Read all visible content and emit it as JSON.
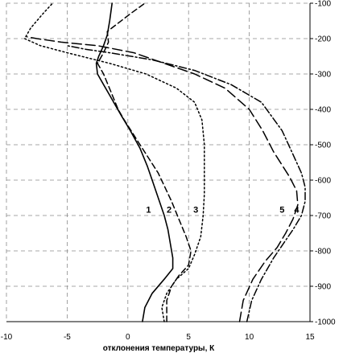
{
  "chart_data": {
    "type": "line",
    "title": "",
    "xlabel": "отклонения температуры, К",
    "ylabel": "",
    "xlim": [
      -10,
      15
    ],
    "ylim": [
      -1000,
      -100
    ],
    "grid": true,
    "legend": "none",
    "x_ticks": [
      -10,
      -5,
      0,
      5,
      10,
      15
    ],
    "x_tick_labels": [
      "-10",
      "-5",
      "0",
      "5",
      "10",
      "15"
    ],
    "y_ticks": [
      -100,
      -200,
      -300,
      -400,
      -500,
      -600,
      -700,
      -800,
      -900,
      -1000
    ],
    "y_tick_labels": [
      "-100",
      "-200",
      "-300",
      "-400",
      "-500",
      "-600",
      "-700",
      "-800",
      "-900",
      "-1000"
    ],
    "series": [
      {
        "name": "1",
        "style": "solid",
        "x": [
          1.2,
          1.4,
          2.0,
          3.0,
          3.7,
          3.7,
          3.5,
          3.3,
          3.0,
          2.5,
          2.0,
          1.6,
          1.0,
          0.2,
          -0.5,
          -1.0,
          -1.5,
          -2.0,
          -2.5,
          -2.6,
          -2.4,
          -2.0,
          -1.7,
          -1.5,
          -1.3
        ],
        "y": [
          -1000,
          -960,
          -920,
          -880,
          -850,
          -820,
          -780,
          -740,
          -700,
          -650,
          -600,
          -560,
          -510,
          -460,
          -420,
          -390,
          -360,
          -330,
          -300,
          -270,
          -250,
          -220,
          -190,
          -150,
          -100
        ]
      },
      {
        "name": "2",
        "style": "dashed",
        "x": [
          3.2,
          3.2,
          3.6,
          4.2,
          5.0,
          5.2,
          4.8,
          4.2,
          3.6,
          2.5,
          1.0,
          -0.3,
          -0.8,
          -1.4,
          -2.0,
          -2.5,
          -2.0,
          -1.6,
          -1.7,
          0.2,
          1.4
        ],
        "y": [
          -1000,
          -940,
          -900,
          -870,
          -840,
          -800,
          -760,
          -710,
          -660,
          -580,
          -500,
          -430,
          -400,
          -350,
          -300,
          -270,
          -240,
          -210,
          -180,
          -130,
          -100
        ]
      },
      {
        "name": "3",
        "style": "dotted",
        "x": [
          3.0,
          2.8,
          3.2,
          4.0,
          5.0,
          5.5,
          6.0,
          6.2,
          6.3,
          6.3,
          6.3,
          6.1,
          5.5,
          4.0,
          1.5,
          -1.5,
          -5.0,
          -7.2,
          -8.5,
          -8.0,
          -7.0,
          -6.2
        ],
        "y": [
          -1000,
          -960,
          -920,
          -880,
          -850,
          -810,
          -760,
          -700,
          -640,
          -580,
          -500,
          -430,
          -380,
          -340,
          -300,
          -270,
          -240,
          -220,
          -200,
          -170,
          -130,
          -100
        ]
      },
      {
        "name": "4",
        "style": "dash-dot",
        "x": [
          9.8,
          10.2,
          11.0,
          12.0,
          12.8,
          13.6,
          14.3,
          14.6,
          14.6,
          14.3,
          13.5,
          12.7,
          11.0,
          8.5,
          5.5,
          2.0,
          -1.5,
          -3.5,
          -5.0
        ],
        "y": [
          -1000,
          -940,
          -880,
          -820,
          -780,
          -740,
          -700,
          -660,
          -620,
          -580,
          -520,
          -460,
          -380,
          -330,
          -290,
          -260,
          -240,
          -230,
          -220
        ]
      },
      {
        "name": "5",
        "style": "long-dash",
        "x": [
          9.2,
          9.5,
          10.3,
          11.3,
          12.3,
          13.0,
          13.6,
          14.0,
          13.9,
          13.3,
          12.0,
          11.1,
          10.0,
          8.0,
          5.5,
          3.0,
          0.5,
          -2.5,
          -5.5,
          -7.5,
          -8.3
        ],
        "y": [
          -1000,
          -940,
          -880,
          -830,
          -790,
          -750,
          -710,
          -670,
          -630,
          -590,
          -520,
          -460,
          -400,
          -340,
          -300,
          -270,
          -240,
          -220,
          -210,
          -200,
          -195
        ]
      }
    ],
    "curve_labels": [
      {
        "text": "1",
        "x": 1.7,
        "y": -692
      },
      {
        "text": "2",
        "x": 3.4,
        "y": -692
      },
      {
        "text": "3",
        "x": 5.6,
        "y": -692
      },
      {
        "text": "5",
        "x": 12.7,
        "y": -692
      },
      {
        "text": "4",
        "x": 13.9,
        "y": -692
      }
    ]
  }
}
